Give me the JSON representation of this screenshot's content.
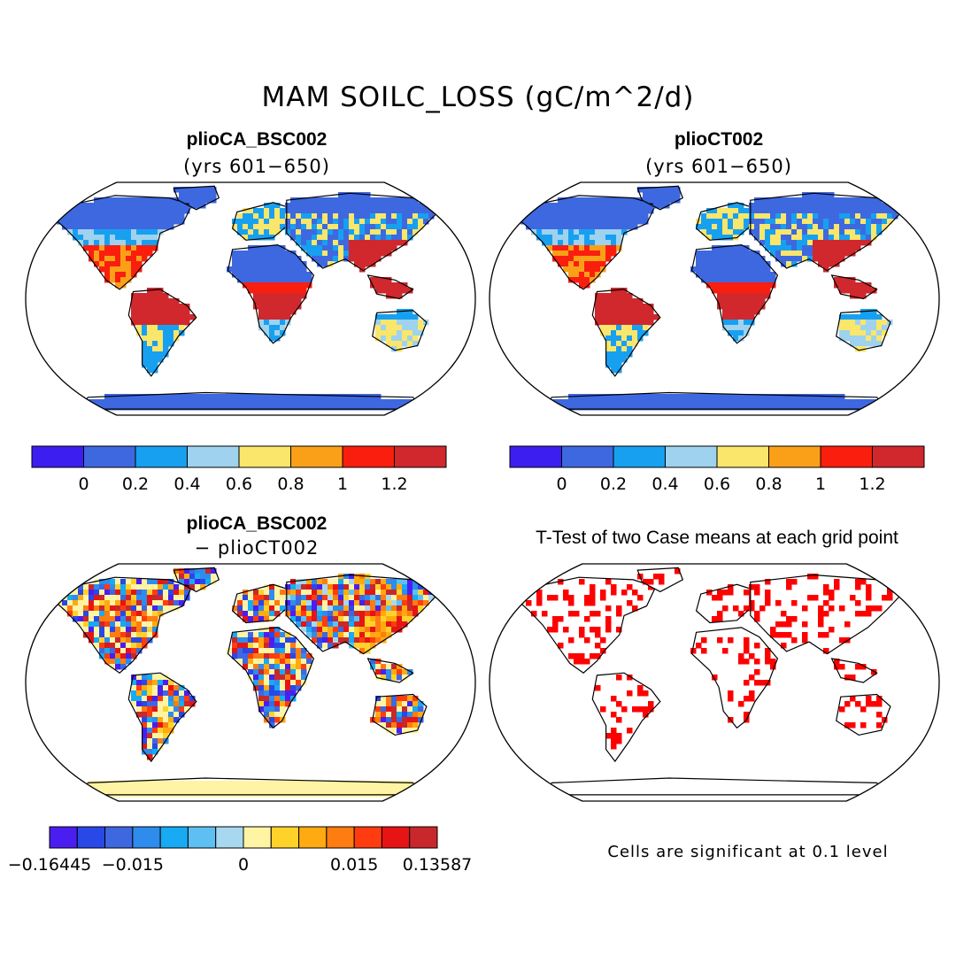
{
  "figure": {
    "title": "MAM SOILC_LOSS (gC/m^2/d)",
    "colors": {
      "ocean": "#ffffff",
      "coast": "#000000"
    }
  },
  "panels": [
    {
      "id": "plioCA",
      "title": "plioCA_BSC002",
      "subtitle": "(yrs 601−650)",
      "colorbar": {
        "colors": [
          "#3c1ef0",
          "#3e68e0",
          "#18a0f0",
          "#9ed2ee",
          "#fae66a",
          "#faa018",
          "#fa1e0e",
          "#d0282c"
        ],
        "ticks": [
          "0",
          "0.2",
          "0.4",
          "0.6",
          "0.8",
          "1",
          "1.2"
        ]
      }
    },
    {
      "id": "plioCT",
      "title": "plioCT002",
      "subtitle": "(yrs 601−650)",
      "colorbar": {
        "colors": [
          "#3c1ef0",
          "#3e68e0",
          "#18a0f0",
          "#9ed2ee",
          "#fae66a",
          "#faa018",
          "#fa1e0e",
          "#d0282c"
        ],
        "ticks": [
          "0",
          "0.2",
          "0.4",
          "0.6",
          "0.8",
          "1",
          "1.2"
        ]
      }
    },
    {
      "id": "diff",
      "title": "plioCA_BSC002",
      "subtitle": "− plioCT002",
      "colorbar": {
        "colors": [
          "#4a1ef0",
          "#2848e8",
          "#3e68e0",
          "#2e8cec",
          "#18aaf2",
          "#5ec0f2",
          "#a8d8f0",
          "#fff4a4",
          "#ffd22a",
          "#ffaa10",
          "#ff7c10",
          "#ff3c10",
          "#e61414",
          "#c8282c"
        ],
        "ticks": [
          "−0.16445",
          "−0.015",
          "0",
          "0.015",
          "0.13587"
        ]
      }
    },
    {
      "id": "ttest",
      "title": "T-Test of two Case means at each grid point",
      "note": "Cells are significant at 0.1 level",
      "colors": {
        "significant": "#ff0000"
      }
    }
  ]
}
